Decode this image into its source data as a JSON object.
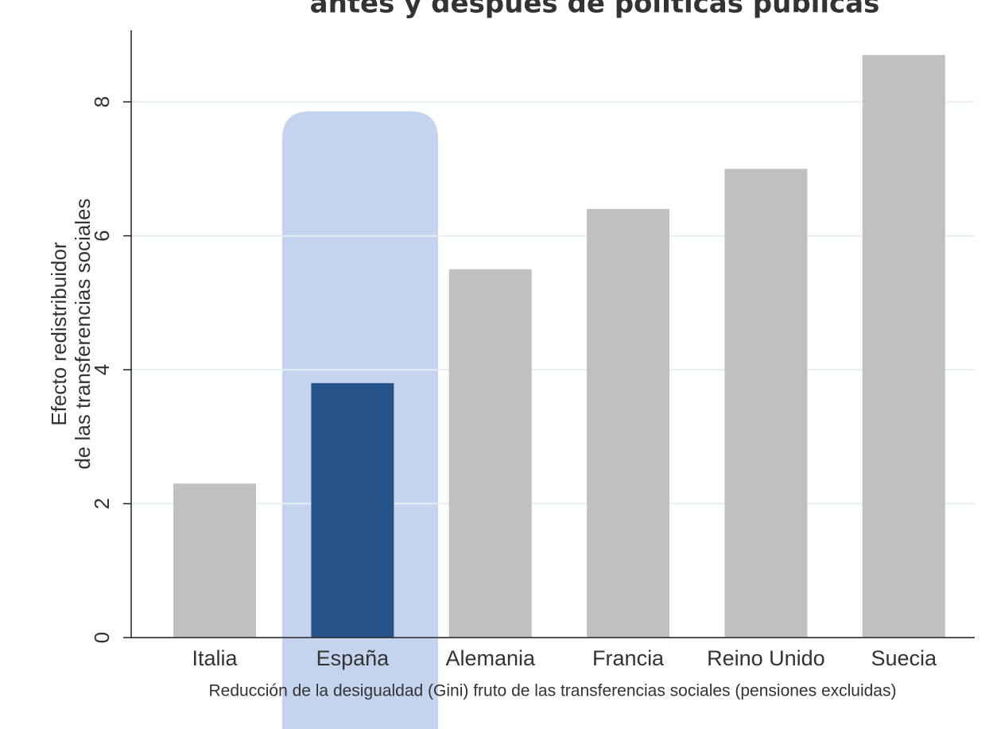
{
  "chart_data": {
    "type": "bar",
    "title": "antes y después de políticas públicas",
    "ylabel": [
      "Efecto redistribuidor",
      "de las transferencias sociales"
    ],
    "xlabel": "Reducción de la desigualdad (Gini) fruto de las transferencias sociales (pensiones excluidas)",
    "categories": [
      "Italia",
      "España",
      "Alemania",
      "Francia",
      "Reino Unido",
      "Suecia"
    ],
    "values": [
      2.3,
      3.8,
      5.5,
      6.4,
      7.0,
      8.7
    ],
    "colors": [
      "#c0c0c0",
      "#26548a",
      "#c0c0c0",
      "#c0c0c0",
      "#c0c0c0",
      "#c0c0c0"
    ],
    "ylim": [
      0,
      9.07
    ],
    "yticks": [
      0,
      2,
      4,
      6,
      8
    ],
    "grid": true
  }
}
